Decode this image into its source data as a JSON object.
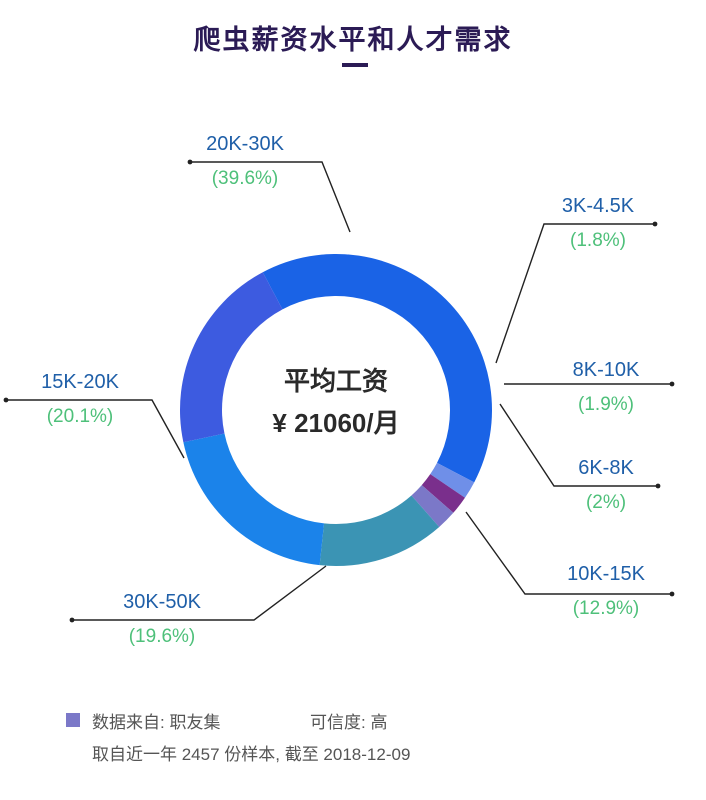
{
  "title": "爬虫薪资水平和人才需求",
  "center": {
    "line1": "平均工资",
    "line2": "¥ 21060/月"
  },
  "chart_data": {
    "type": "pie",
    "categories": [
      "20K-30K",
      "3K-4.5K",
      "8K-10K",
      "6K-8K",
      "10K-15K",
      "30K-50K",
      "15K-20K"
    ],
    "values": [
      39.6,
      1.8,
      1.9,
      2,
      12.9,
      19.6,
      20.1
    ],
    "value_labels": [
      "(39.6%)",
      "(1.8%)",
      "(1.9%)",
      "(2%)",
      "(12.9%)",
      "(19.6%)",
      "(20.1%)"
    ],
    "colors": [
      "#1a63e6",
      "#6f8fe8",
      "#7a2f8c",
      "#7b78c8",
      "#3b94b4",
      "#1b83ea",
      "#3d5be0"
    ],
    "donut": true
  },
  "footer": {
    "source": "数据来自: 职友集",
    "credibility": "可信度: 高",
    "note": "取自近一年 2457 份样本, 截至 2018-12-09",
    "swatch_color": "#7b78c8"
  }
}
